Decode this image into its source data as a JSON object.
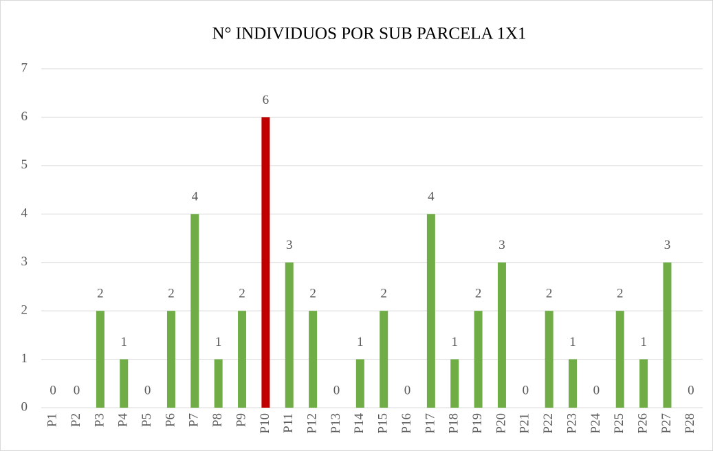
{
  "chart_data": {
    "type": "bar",
    "title": "N° INDIVIDUOS  POR SUB PARCELA 1X1",
    "categories": [
      "P1",
      "P2",
      "P3",
      "P4",
      "P5",
      "P6",
      "P7",
      "P8",
      "P9",
      "P10",
      "P11",
      "P12",
      "P13",
      "P14",
      "P15",
      "P16",
      "P17",
      "P18",
      "P19",
      "P20",
      "P21",
      "P22",
      "P23",
      "P24",
      "P25",
      "P26",
      "P27",
      "P28"
    ],
    "values": [
      0,
      0,
      2,
      1,
      0,
      2,
      4,
      1,
      2,
      6,
      3,
      2,
      0,
      1,
      2,
      0,
      4,
      1,
      2,
      3,
      0,
      2,
      1,
      0,
      2,
      1,
      3,
      0
    ],
    "colors": [
      "#70ad47",
      "#70ad47",
      "#70ad47",
      "#70ad47",
      "#70ad47",
      "#70ad47",
      "#70ad47",
      "#70ad47",
      "#70ad47",
      "#c00000",
      "#70ad47",
      "#70ad47",
      "#70ad47",
      "#70ad47",
      "#70ad47",
      "#70ad47",
      "#70ad47",
      "#70ad47",
      "#70ad47",
      "#70ad47",
      "#70ad47",
      "#70ad47",
      "#70ad47",
      "#70ad47",
      "#70ad47",
      "#70ad47",
      "#70ad47",
      "#70ad47"
    ],
    "ylim": [
      0,
      7
    ],
    "yticks": [
      0,
      1,
      2,
      3,
      4,
      5,
      6,
      7
    ],
    "grid": true
  }
}
